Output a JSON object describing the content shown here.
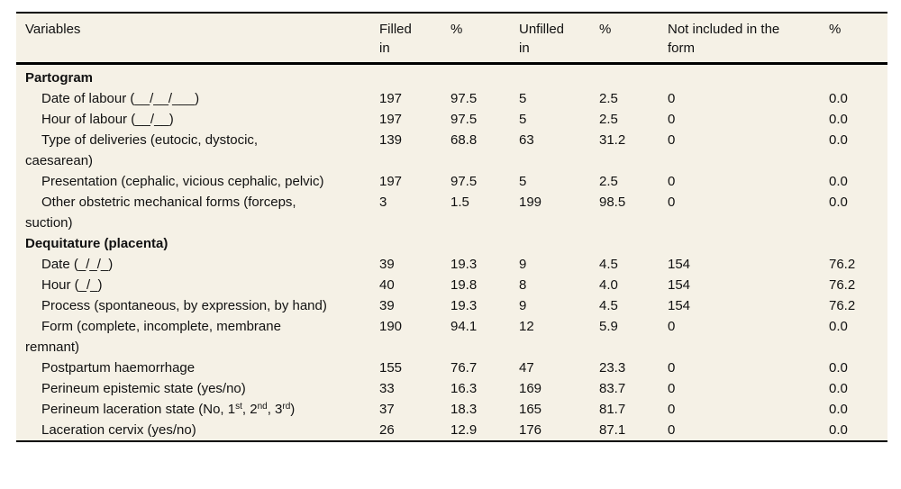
{
  "colors": {
    "table_background": "#f5f1e6",
    "rule": "#000000",
    "text": "#111111"
  },
  "table": {
    "columns": [
      {
        "label": "Variables",
        "lines": [
          "Variables"
        ]
      },
      {
        "label": "Filled in",
        "lines": [
          "Filled",
          "in"
        ]
      },
      {
        "label": "%",
        "lines": [
          "%"
        ]
      },
      {
        "label": "Unfilled in",
        "lines": [
          "Unfilled",
          "in"
        ]
      },
      {
        "label": "%",
        "lines": [
          "%"
        ]
      },
      {
        "label": "Not included in the form",
        "lines": [
          "Not included in the",
          "form"
        ]
      },
      {
        "label": "%",
        "lines": [
          "%"
        ]
      }
    ],
    "sections": [
      {
        "title": "Partogram",
        "rows": [
          {
            "variable": "Date of labour (__/__/___)",
            "filled": "197",
            "filled_pct": "97.5",
            "unfilled": "5",
            "unfilled_pct": "2.5",
            "not_included": "0",
            "not_included_pct": "0.0"
          },
          {
            "variable": "Hour of labour (__/__)",
            "filled": "197",
            "filled_pct": "97.5",
            "unfilled": "5",
            "unfilled_pct": "2.5",
            "not_included": "0",
            "not_included_pct": "0.0"
          },
          {
            "variable": "Type of deliveries (eutocic, dystocic, caesarean)",
            "filled": "139",
            "filled_pct": "68.8",
            "unfilled": "63",
            "unfilled_pct": "31.2",
            "not_included": "0",
            "not_included_pct": "0.0"
          },
          {
            "variable": "Presentation (cephalic, vicious cephalic, pelvic)",
            "filled": "197",
            "filled_pct": "97.5",
            "unfilled": "5",
            "unfilled_pct": "2.5",
            "not_included": "0",
            "not_included_pct": "0.0"
          },
          {
            "variable": "Other obstetric mechanical forms (forceps, suction)",
            "filled": "3",
            "filled_pct": "1.5",
            "unfilled": "199",
            "unfilled_pct": "98.5",
            "not_included": "0",
            "not_included_pct": "0.0"
          }
        ]
      },
      {
        "title": "Dequitature (placenta)",
        "rows": [
          {
            "variable": "Date (_/_/_)",
            "filled": "39",
            "filled_pct": "19.3",
            "unfilled": "9",
            "unfilled_pct": "4.5",
            "not_included": "154",
            "not_included_pct": "76.2"
          },
          {
            "variable": "Hour (_/_)",
            "filled": "40",
            "filled_pct": "19.8",
            "unfilled": "8",
            "unfilled_pct": "4.0",
            "not_included": "154",
            "not_included_pct": "76.2"
          },
          {
            "variable": "Process (spontaneous, by expression, by hand)",
            "filled": "39",
            "filled_pct": "19.3",
            "unfilled": "9",
            "unfilled_pct": "4.5",
            "not_included": "154",
            "not_included_pct": "76.2"
          },
          {
            "variable": "Form (complete, incomplete, membrane remnant)",
            "filled": "190",
            "filled_pct": "94.1",
            "unfilled": "12",
            "unfilled_pct": "5.9",
            "not_included": "0",
            "not_included_pct": "0.0"
          },
          {
            "variable": "Postpartum haemorrhage",
            "filled": "155",
            "filled_pct": "76.7",
            "unfilled": "47",
            "unfilled_pct": "23.3",
            "not_included": "0",
            "not_included_pct": "0.0"
          },
          {
            "variable": "Perineum epistemic state (yes/no)",
            "filled": "33",
            "filled_pct": "16.3",
            "unfilled": "169",
            "unfilled_pct": "83.7",
            "not_included": "0",
            "not_included_pct": "0.0"
          },
          {
            "variable": "Perineum laceration state (No, 1{st}, 2{nd}, 3{rd})",
            "filled": "37",
            "filled_pct": "18.3",
            "unfilled": "165",
            "unfilled_pct": "81.7",
            "not_included": "0",
            "not_included_pct": "0.0"
          },
          {
            "variable": "Laceration cervix (yes/no)",
            "filled": "26",
            "filled_pct": "12.9",
            "unfilled": "176",
            "unfilled_pct": "87.1",
            "not_included": "0",
            "not_included_pct": "0.0"
          }
        ]
      }
    ]
  }
}
